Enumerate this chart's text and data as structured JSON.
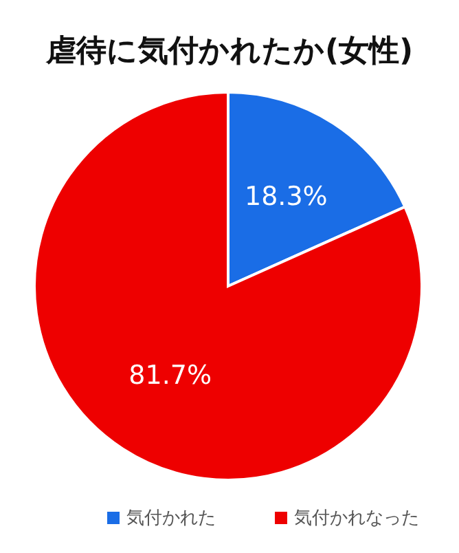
{
  "chart_data": {
    "type": "pie",
    "title": "虐待に気付かれたか(女性)",
    "categories": [
      "気付かれた",
      "気付かれなった"
    ],
    "values": [
      18.3,
      81.7
    ],
    "colors": [
      "#1a6de6",
      "#ee0000"
    ],
    "value_labels": [
      "18.3%",
      "81.7%"
    ],
    "legend": "bottom"
  }
}
